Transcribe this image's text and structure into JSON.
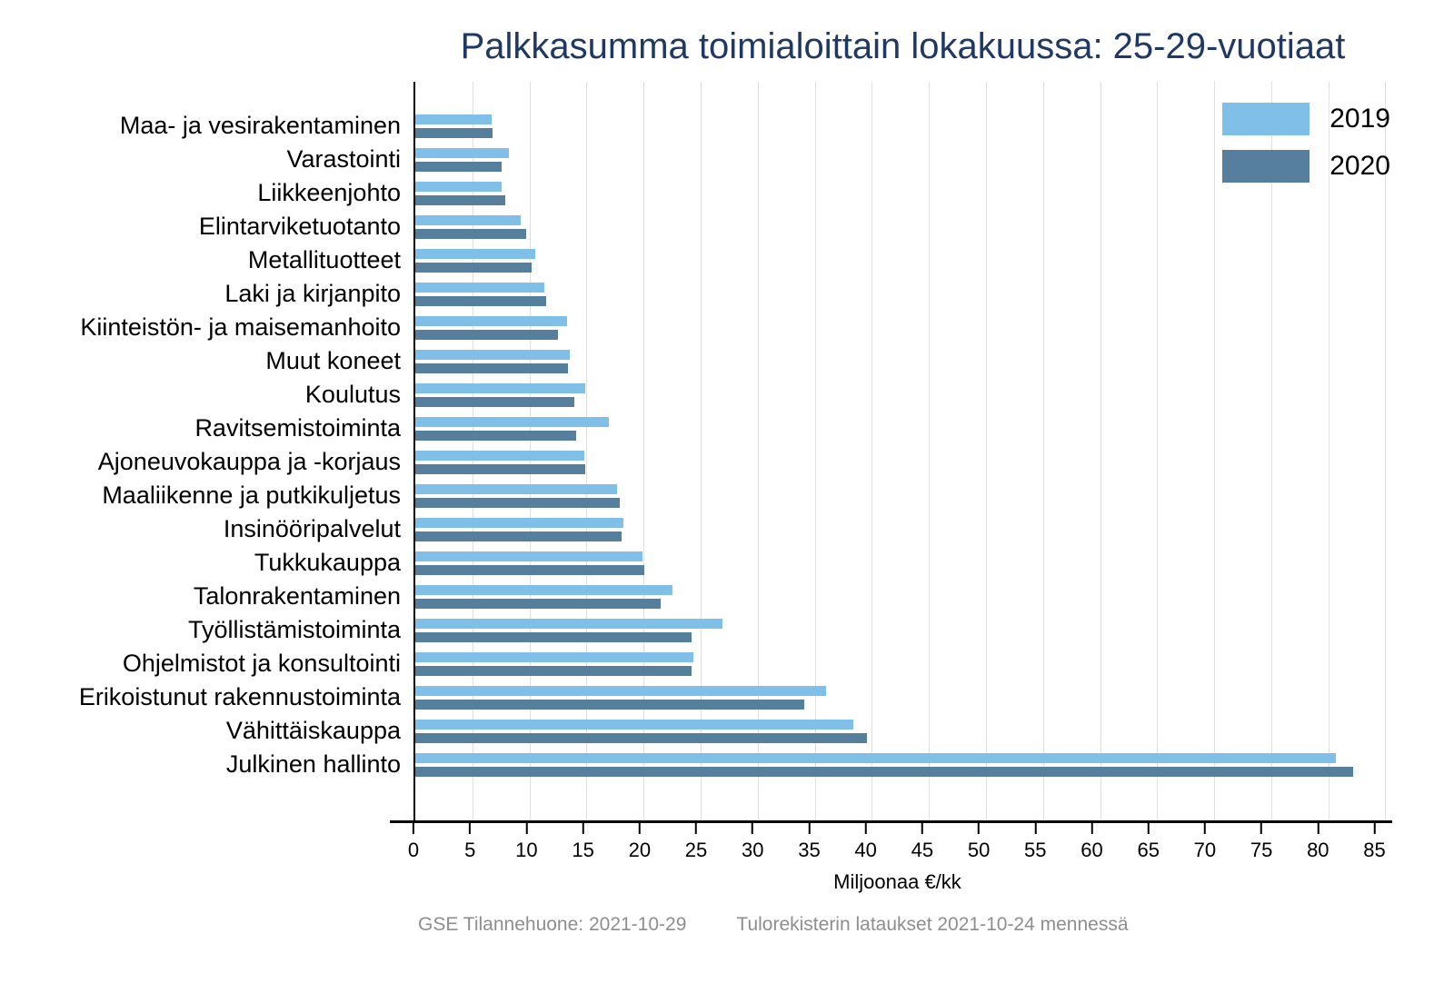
{
  "title": "Palkkasumma toimialoittain lokakuussa: 25-29-vuotiaat",
  "footer": {
    "left": "GSE Tilannehuone: 2021-10-29",
    "right": "Tulorekisterin lataukset 2021-10-24 mennessä"
  },
  "colors": {
    "title": "#1F3864",
    "series_2019": "#80BFE8",
    "series_2020": "#567F9D",
    "gridline": "#DEDEE4",
    "axis": "#000000",
    "footer_text": "#8E8E8E",
    "background": "#FFFFFF"
  },
  "chart_data": {
    "type": "bar",
    "orientation": "horizontal",
    "title": "Palkkasumma toimialoittain lokakuussa: 25-29-vuotiaat",
    "xlabel": "Miljoonaa €/kk",
    "ylabel": "",
    "xlim": [
      0,
      85.6
    ],
    "xticks": [
      0,
      5,
      10,
      15,
      20,
      25,
      30,
      35,
      40,
      45,
      50,
      55,
      60,
      65,
      70,
      75,
      80,
      85
    ],
    "grid": true,
    "legend_position": "top-right",
    "categories": [
      "Maa- ja vesirakentaminen",
      "Varastointi",
      "Liikkeenjohto",
      "Elintarviketuotanto",
      "Metallituotteet",
      "Laki ja kirjanpito",
      "Kiinteistön- ja maisemanhoito",
      "Muut koneet",
      "Koulutus",
      "Ravitsemistoiminta",
      "Ajoneuvokauppa ja -korjaus",
      "Maaliikenne ja putkikuljetus",
      "Insinööripalvelut",
      "Tukkukauppa",
      "Talonrakentaminen",
      "Työllistämistoiminta",
      "Ohjelmistot ja konsultointi",
      "Erikoistunut rakennustoiminta",
      "Vähittäiskauppa",
      "Julkinen hallinto"
    ],
    "series": [
      {
        "name": "2019",
        "color": "#80BFE8",
        "values": [
          6.7,
          8.2,
          7.6,
          9.2,
          10.5,
          11.3,
          13.3,
          13.5,
          14.9,
          17.0,
          14.8,
          17.7,
          18.2,
          19.9,
          22.5,
          26.9,
          24.4,
          36.0,
          38.4,
          80.7
        ]
      },
      {
        "name": "2020",
        "color": "#567F9D",
        "values": [
          6.8,
          7.6,
          7.9,
          9.7,
          10.2,
          11.5,
          12.5,
          13.4,
          13.9,
          14.1,
          14.9,
          17.9,
          18.1,
          20.1,
          21.5,
          24.2,
          24.2,
          34.1,
          39.6,
          82.2
        ]
      }
    ]
  }
}
